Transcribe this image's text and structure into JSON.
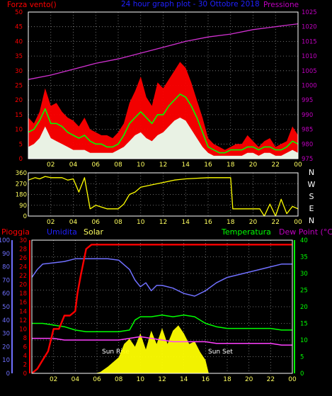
{
  "colors": {
    "background": "#000000",
    "frame": "#ffffff",
    "grid": "#8a8a8a",
    "wind_gust": "#ff0000",
    "wind_avg": "#00ff00",
    "wind_min": "#e8fff0",
    "pressure": "#d030d0",
    "direction": "#ffff00",
    "rain": "#ff0000",
    "humidity": "#7070ff",
    "solar": "#ffff00",
    "temperature": "#00ff00",
    "dewpoint": "#ff40ff",
    "label_red": "#ff0000",
    "label_blue": "#2020ff",
    "label_magenta": "#c000c0",
    "label_green": "#00ff00",
    "label_yellow": "#ffff60",
    "label_white": "#ffffff"
  },
  "chart_data": [
    {
      "type": "line",
      "title": "24 hour graph plot - 30 Ottobre 2018",
      "left_label": "Forza vento()",
      "right_label": "Pressione",
      "x_ticks": [
        "02",
        "04",
        "06",
        "08",
        "10",
        "12",
        "14",
        "16",
        "18",
        "20",
        "22",
        "00"
      ],
      "xlim": [
        0,
        24
      ],
      "y_left": {
        "ticks": [
          "0",
          "5",
          "10",
          "15",
          "20",
          "25",
          "30",
          "35",
          "40",
          "45",
          "50"
        ],
        "ylim": [
          0,
          50
        ]
      },
      "y_right": {
        "ticks": [
          "975",
          "980",
          "985",
          "990",
          "995",
          "1000",
          "1005",
          "1010",
          "1015",
          "1020",
          "1025"
        ],
        "ylim": [
          975,
          1025
        ]
      },
      "series": [
        {
          "role": "gust",
          "x": [
            0,
            0.5,
            1,
            1.5,
            2,
            2.5,
            3,
            3.5,
            4,
            4.5,
            5,
            5.5,
            6,
            6.5,
            7,
            7.5,
            8,
            8.5,
            9,
            9.5,
            10,
            10.5,
            11,
            11.5,
            12,
            12.5,
            13,
            13.5,
            14,
            14.5,
            15,
            15.5,
            16,
            16.5,
            17,
            17.5,
            18,
            18.5,
            19,
            19.5,
            20,
            20.5,
            21,
            21.5,
            22,
            22.5,
            23,
            23.5,
            24
          ],
          "values": [
            14,
            12,
            16,
            24,
            18,
            19,
            16,
            14,
            13,
            11,
            14,
            10,
            9,
            8,
            8,
            7,
            9,
            12,
            19,
            23,
            28,
            21,
            18,
            26,
            24,
            27,
            30,
            33,
            31,
            26,
            20,
            14,
            7,
            5,
            4,
            3,
            4,
            5,
            5,
            8,
            6,
            4,
            6,
            7,
            4,
            5,
            6,
            11,
            8
          ]
        },
        {
          "role": "average",
          "x": [
            0,
            0.5,
            1,
            1.5,
            2,
            2.5,
            3,
            3.5,
            4,
            4.5,
            5,
            5.5,
            6,
            6.5,
            7,
            7.5,
            8,
            8.5,
            9,
            9.5,
            10,
            10.5,
            11,
            11.5,
            12,
            12.5,
            13,
            13.5,
            14,
            14.5,
            15,
            15.5,
            16,
            16.5,
            17,
            17.5,
            18,
            18.5,
            19,
            19.5,
            20,
            20.5,
            21,
            21.5,
            22,
            22.5,
            23,
            23.5,
            24
          ],
          "values": [
            9,
            10,
            13,
            17,
            12,
            12,
            11,
            9,
            8,
            7,
            8,
            6,
            5,
            5,
            4,
            4,
            5,
            8,
            12,
            14,
            16,
            14,
            12,
            15,
            15,
            18,
            20,
            22,
            21,
            18,
            14,
            9,
            4,
            3,
            2,
            2,
            3,
            3,
            3,
            4,
            4,
            3,
            4,
            4,
            3,
            3,
            4,
            6,
            5
          ]
        },
        {
          "role": "minimum",
          "x": [
            0,
            0.5,
            1,
            1.5,
            2,
            2.5,
            3,
            3.5,
            4,
            4.5,
            5,
            5.5,
            6,
            6.5,
            7,
            7.5,
            8,
            8.5,
            9,
            9.5,
            10,
            10.5,
            11,
            11.5,
            12,
            12.5,
            13,
            13.5,
            14,
            14.5,
            15,
            15.5,
            16,
            16.5,
            17,
            17.5,
            18,
            18.5,
            19,
            19.5,
            20,
            20.5,
            21,
            21.5,
            22,
            22.5,
            23,
            23.5,
            24
          ],
          "values": [
            4,
            5,
            7,
            11,
            7,
            6,
            5,
            4,
            3,
            3,
            3,
            2,
            2,
            2,
            2,
            2,
            3,
            4,
            6,
            8,
            9,
            7,
            6,
            8,
            9,
            11,
            13,
            14,
            13,
            10,
            7,
            4,
            2,
            1,
            1,
            1,
            1,
            1,
            1,
            2,
            2,
            1,
            2,
            2,
            1,
            1,
            2,
            3,
            2
          ]
        },
        {
          "role": "pressure",
          "axis": "right",
          "x": [
            0,
            2,
            4,
            6,
            8,
            10,
            12,
            14,
            16,
            18,
            20,
            22,
            23,
            24
          ],
          "values": [
            1002,
            1003.5,
            1005.5,
            1007.5,
            1009,
            1011,
            1013,
            1015,
            1016.5,
            1017.5,
            1019,
            1020,
            1020.5,
            1021
          ]
        }
      ]
    },
    {
      "type": "line",
      "side_labels": [
        "N",
        "W",
        "S",
        "E",
        "N"
      ],
      "x_ticks": [
        "02",
        "04",
        "06",
        "08",
        "10",
        "12",
        "14",
        "16",
        "18",
        "20",
        "22",
        "00"
      ],
      "xlim": [
        0,
        24
      ],
      "y": {
        "ticks": [
          "0",
          "90",
          "180",
          "270",
          "360"
        ],
        "ylim": [
          0,
          360
        ]
      },
      "series": [
        {
          "role": "direction",
          "x": [
            0,
            0.6,
            1,
            1.5,
            2,
            3,
            3.5,
            4,
            4.5,
            5,
            5.5,
            6,
            7,
            8,
            8.5,
            9,
            9.5,
            10,
            11,
            12,
            13,
            14,
            15,
            16,
            17,
            18,
            18.2,
            19,
            20,
            20.6,
            21,
            21.5,
            22,
            22.5,
            23,
            23.5,
            24
          ],
          "values": [
            300,
            320,
            310,
            330,
            320,
            320,
            300,
            310,
            200,
            320,
            60,
            90,
            60,
            60,
            100,
            180,
            200,
            240,
            260,
            280,
            300,
            310,
            315,
            320,
            320,
            320,
            60,
            60,
            60,
            60,
            0,
            100,
            0,
            140,
            20,
            80,
            60
          ]
        }
      ]
    },
    {
      "type": "line",
      "labels": {
        "rain": "Pioggia",
        "humidity": "Umidita",
        "solar": "Solar",
        "temperature": "Temperatura",
        "dewpoint": "Dew Point (°C)"
      },
      "x_ticks": [
        "02",
        "04",
        "06",
        "08",
        "10",
        "12",
        "14",
        "16",
        "18",
        "20",
        "22",
        "00"
      ],
      "xlim": [
        0,
        24
      ],
      "y_left_outer": {
        "ticks": [
          "0",
          "10",
          "20",
          "30",
          "40",
          "50",
          "60",
          "70",
          "80",
          "90",
          "100"
        ],
        "ylim": [
          0,
          100
        ]
      },
      "y_left_inner": {
        "ticks": [
          "0",
          "2",
          "4",
          "6",
          "8",
          "10",
          "12",
          "14",
          "16",
          "18",
          "20",
          "22",
          "24",
          "26",
          "28",
          "30"
        ],
        "ylim": [
          0,
          30
        ]
      },
      "y_right": {
        "ticks": [
          "0",
          "5",
          "10",
          "15",
          "20",
          "25",
          "30",
          "35",
          "40"
        ],
        "ylim": [
          0,
          40
        ]
      },
      "annotations": [
        "Sun Rise",
        "Sun Set"
      ],
      "series": [
        {
          "role": "rain",
          "axis": "left_inner",
          "x": [
            0,
            0.5,
            1,
            1.5,
            2,
            2.5,
            3,
            3.5,
            4,
            4.2,
            4.5,
            5,
            5.5,
            6,
            24
          ],
          "values": [
            0,
            1,
            3,
            5,
            10,
            10,
            13,
            13,
            14,
            18,
            22,
            28,
            29,
            29,
            29
          ]
        },
        {
          "role": "humidity",
          "axis": "left_outer",
          "x": [
            0,
            0.5,
            1,
            2,
            3,
            4,
            5,
            6,
            7,
            8,
            9,
            9.5,
            10,
            10.5,
            11,
            11.5,
            12,
            13,
            14,
            15,
            16,
            17,
            18,
            19,
            20,
            21,
            22,
            23,
            24
          ],
          "values": [
            72,
            78,
            82,
            83,
            84,
            86,
            86,
            86,
            86,
            85,
            78,
            70,
            65,
            68,
            62,
            66,
            66,
            64,
            60,
            58,
            62,
            68,
            72,
            74,
            76,
            78,
            80,
            82,
            82
          ]
        },
        {
          "role": "solar",
          "axis": "left_outer",
          "x": [
            0,
            5.8,
            6.3,
            7,
            8,
            8.5,
            9,
            9.5,
            10,
            10.5,
            11,
            11.5,
            12,
            12.5,
            13,
            13.5,
            14,
            14.5,
            15,
            15.5,
            16,
            16.3,
            24
          ],
          "values": [
            0,
            0,
            1,
            5,
            12,
            22,
            26,
            20,
            30,
            18,
            32,
            22,
            34,
            22,
            32,
            36,
            30,
            22,
            24,
            16,
            10,
            0,
            0
          ]
        },
        {
          "role": "temperature",
          "axis": "right",
          "x": [
            0,
            1,
            2,
            3,
            4,
            5,
            6,
            7,
            8,
            9,
            9.5,
            10,
            11,
            12,
            13,
            14,
            15,
            16,
            17,
            18,
            19,
            20,
            21,
            22,
            23,
            24
          ],
          "values": [
            15,
            15,
            14.5,
            14,
            13,
            12.5,
            12.5,
            12.5,
            12.5,
            13,
            16,
            17,
            17,
            17.5,
            17,
            17.5,
            17,
            15,
            14,
            13.5,
            13.5,
            13.5,
            13.5,
            13.5,
            13,
            13
          ]
        },
        {
          "role": "dewpoint",
          "axis": "right",
          "x": [
            0,
            1,
            2,
            3,
            4,
            5,
            6,
            7,
            8,
            9,
            10,
            11,
            12,
            13,
            14,
            15,
            16,
            17,
            18,
            19,
            20,
            21,
            22,
            23,
            24
          ],
          "values": [
            10.5,
            10.5,
            10.5,
            10,
            10,
            10,
            10,
            10,
            10,
            10.5,
            11,
            10.5,
            10,
            9.5,
            9.5,
            9.5,
            9.5,
            9,
            9,
            9,
            9,
            9,
            9,
            8.5,
            8.5
          ]
        }
      ]
    }
  ]
}
